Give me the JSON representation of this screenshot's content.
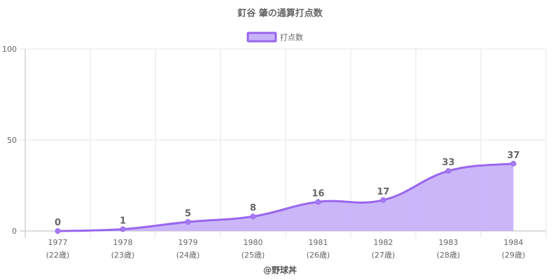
{
  "chart_data": {
    "type": "area",
    "title": "釘谷 肇の通算打点数",
    "series": [
      {
        "name": "打点数",
        "values": [
          0,
          1,
          5,
          8,
          16,
          17,
          33,
          37
        ]
      }
    ],
    "categories": [
      "1977",
      "1978",
      "1979",
      "1980",
      "1981",
      "1982",
      "1983",
      "1984"
    ],
    "category_sublabels": [
      "(22歳)",
      "(23歳)",
      "(24歳)",
      "(25歳)",
      "(26歳)",
      "(27歳)",
      "(28歳)",
      "(29歳)"
    ],
    "y_ticks": [
      "0",
      "50",
      "100"
    ],
    "ylim": [
      0,
      100
    ],
    "legend_position": "top-center",
    "grid": true,
    "colors": {
      "line": "#9966ee",
      "fill": "#c8b2fa",
      "point": "#a57cf2"
    }
  },
  "footer": "@野球丼"
}
